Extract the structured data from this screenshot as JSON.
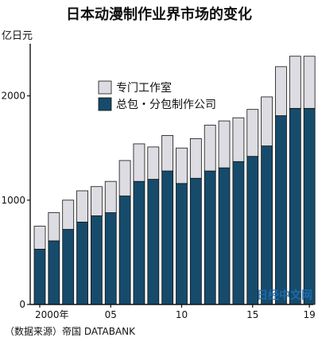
{
  "chart_data": {
    "type": "bar",
    "stacked": true,
    "title": "日本动漫制作业界市场的变化",
    "ylabel": "亿日元",
    "ylim": [
      0,
      2500
    ],
    "yticks": [
      0,
      1000,
      2000
    ],
    "grid": false,
    "legend_position": "top-left",
    "years": [
      2000,
      2001,
      2002,
      2003,
      2004,
      2005,
      2006,
      2007,
      2008,
      2009,
      2010,
      2011,
      2012,
      2013,
      2014,
      2015,
      2016,
      2017,
      2018,
      2019
    ],
    "x_tick_labels": [
      "2000年",
      "05",
      "10",
      "15",
      "19"
    ],
    "x_tick_years": [
      2000,
      2005,
      2010,
      2015,
      2019
    ],
    "series": [
      {
        "name": "总包・分包制作公司",
        "color": "#164b6b",
        "values": [
          530,
          610,
          720,
          790,
          850,
          880,
          1040,
          1180,
          1200,
          1280,
          1160,
          1210,
          1280,
          1310,
          1370,
          1420,
          1520,
          1810,
          1880,
          1880
        ]
      },
      {
        "name": "专门工作室",
        "color": "#dcdce2",
        "values": [
          220,
          270,
          280,
          300,
          280,
          300,
          340,
          360,
          310,
          340,
          340,
          380,
          440,
          450,
          420,
          450,
          470,
          470,
          500,
          500
        ]
      }
    ],
    "source": "（数据来源）帝国 DATABANK"
  },
  "watermark": "日经中文网"
}
